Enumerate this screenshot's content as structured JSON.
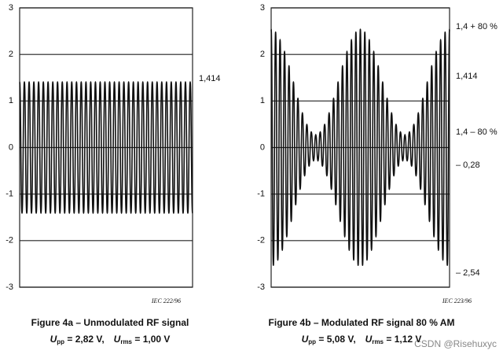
{
  "chart_data": [
    {
      "type": "line",
      "title": "Figure 4a – Unmodulated RF signal",
      "formula": [
        {
          "symbol": "U",
          "sub": "pp",
          "rest": " = 2,82 V,"
        },
        {
          "symbol": "U",
          "sub": "rms",
          "rest": " = 1,00 V"
        }
      ],
      "source": "IEC 222/96",
      "annotations": [
        "1,414"
      ],
      "ylim": [
        -3,
        3
      ],
      "yticks": [
        3,
        2,
        1,
        0,
        -1,
        -2,
        -3
      ],
      "grid": true,
      "color": "#111111",
      "values": [
        1.41,
        -1.41,
        1.41,
        -1.41,
        1.41,
        -1.41,
        1.41,
        -1.41,
        1.41,
        -1.41,
        1.41,
        -1.41,
        1.41,
        -1.41,
        1.41,
        -1.41,
        1.41,
        -1.41,
        1.41,
        -1.41,
        1.41,
        -1.41,
        1.41,
        -1.41,
        1.41,
        -1.41,
        1.41,
        -1.41,
        1.41,
        -1.41,
        1.41,
        -1.41,
        1.41,
        -1.41,
        1.41,
        -1.41,
        1.41,
        -1.41,
        1.41,
        -1.41,
        1.41,
        -1.41,
        1.41,
        -1.41,
        1.41,
        -1.41,
        1.41,
        -1.41,
        1.41,
        -1.41,
        1.41,
        -1.41,
        1.41,
        -1.41,
        1.41,
        -1.41,
        1.41,
        -1.41,
        1.41,
        -1.41,
        1.41,
        -1.41,
        1.41,
        -1.41,
        1.41,
        -1.41,
        1.41,
        -1.41,
        1.41,
        -1.41,
        1.41,
        -1.41,
        1.41,
        -1.41
      ]
    },
    {
      "type": "line",
      "title": "Figure 4b – Modulated RF signal 80 % AM",
      "formula": [
        {
          "symbol": "U",
          "sub": "pp",
          "rest": " = 5,08 V,"
        },
        {
          "symbol": "U",
          "sub": "rms",
          "rest": " = 1,12 V"
        }
      ],
      "source": "IEC 223/96",
      "annotations": [
        "1,4 + 80 %",
        "1,414",
        "1,4 – 80 %",
        "– 0,28",
        "– 2,54"
      ],
      "ylim": [
        -3,
        3
      ],
      "yticks": [
        3,
        2,
        1,
        0,
        -1,
        -2,
        -3
      ],
      "grid": true,
      "color": "#111111",
      "values": [
        2.54,
        -2.53,
        2.48,
        -2.42,
        2.32,
        -2.21,
        2.07,
        -1.92,
        1.76,
        -1.59,
        1.41,
        -1.23,
        1.06,
        -0.9,
        0.75,
        -0.61,
        0.5,
        -0.4,
        0.34,
        -0.29,
        0.28,
        -0.29,
        0.34,
        -0.4,
        0.5,
        -0.61,
        0.75,
        -0.9,
        1.06,
        -1.23,
        1.41,
        -1.59,
        1.76,
        -1.92,
        2.07,
        -2.21,
        2.32,
        -2.42,
        2.48,
        -2.53,
        2.54,
        -2.53,
        2.48,
        -2.42,
        2.32,
        -2.21,
        2.07,
        -1.92,
        1.76,
        -1.59,
        1.41,
        -1.23,
        1.06,
        -0.9,
        0.75,
        -0.61,
        0.5,
        -0.4,
        0.34,
        -0.29,
        0.28,
        -0.29,
        0.34,
        -0.4,
        0.5,
        -0.61,
        0.75,
        -0.9,
        1.06,
        -1.23,
        1.41,
        -1.59,
        1.76,
        -1.92,
        2.07,
        -2.21,
        2.32,
        -2.42,
        2.48,
        -2.53,
        2.54
      ]
    }
  ],
  "watermark": "CSDN @Risehuxyc"
}
